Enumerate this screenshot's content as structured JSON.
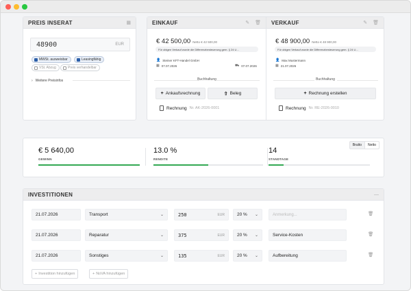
{
  "preis": {
    "title": "PREIS INSERAT",
    "icon": "calculator-icon",
    "value": "48900",
    "unit": "EUR",
    "chips": [
      {
        "label": "MWSt. ausweisbar",
        "checked": true
      },
      {
        "label": "Leasingfähig",
        "checked": true
      },
      {
        "label": "VSt. Abzug",
        "checked": false
      },
      {
        "label": "Preis verhandelbar",
        "checked": false
      }
    ],
    "more_label": "Weitere Preisinfos"
  },
  "einkauf": {
    "title": "EINKAUF",
    "amount": "€ 42 500,00",
    "net": "Netto € 42 500,00",
    "note": "Für obigen Verkauf wurde die Differenzbesteuerung gem. § 24 U...",
    "party": "Steiner KFT-Handel GmbH",
    "date": "07.07.2026",
    "delivery_date": "07.07.2026",
    "section": "Buchhaltung",
    "btn_invoice": "Ankaufsrechnung",
    "btn_receipt": "Beleg",
    "doc_label": "Rechnung",
    "doc_nr": "Nr. AK-2026-0001"
  },
  "verkauf": {
    "title": "VERKAUF",
    "amount": "€ 48 900,00",
    "net": "Netto € 48 900,00",
    "note": "Für obigen Verkauf wurde die Differenzbesteuerung gem. § 24 U...",
    "party": "Max Mustermann",
    "date": "21.07.2026",
    "section": "Buchhaltung",
    "btn_create": "Rechnung erstellen",
    "doc_label": "Rechnung",
    "doc_nr": "Nr. RE-2026-0010"
  },
  "stats": {
    "toggle": {
      "active": "Brutto",
      "inactive": "Netto"
    },
    "items": [
      {
        "value": "€ 5 640,00",
        "label": "GEWINN",
        "fill": 1.0
      },
      {
        "value": "13.0 %",
        "label": "RENDITE",
        "fill": 0.5
      },
      {
        "value": "14",
        "label": "STANDTAGE",
        "fill": 0.15
      }
    ],
    "accent": "#32a852"
  },
  "invest": {
    "title": "INVESTITIONEN",
    "rows": [
      {
        "date": "21.07.2026",
        "category": "Transport",
        "amount": "250",
        "unit": "EUR",
        "vat": "20 %",
        "note": "",
        "note_placeholder": "Anmerkung..."
      },
      {
        "date": "21.07.2026",
        "category": "Reparatur",
        "amount": "375",
        "unit": "EUR",
        "vat": "20 %",
        "note": "Service-Kosten",
        "note_placeholder": ""
      },
      {
        "date": "21.07.2026",
        "category": "Sonstiges",
        "amount": "135",
        "unit": "EUR",
        "vat": "20 %",
        "note": "Aufbereitung",
        "note_placeholder": ""
      }
    ],
    "add_investment": "Investition hinzufügen",
    "add_nova": "NoVA hinzufügen"
  }
}
